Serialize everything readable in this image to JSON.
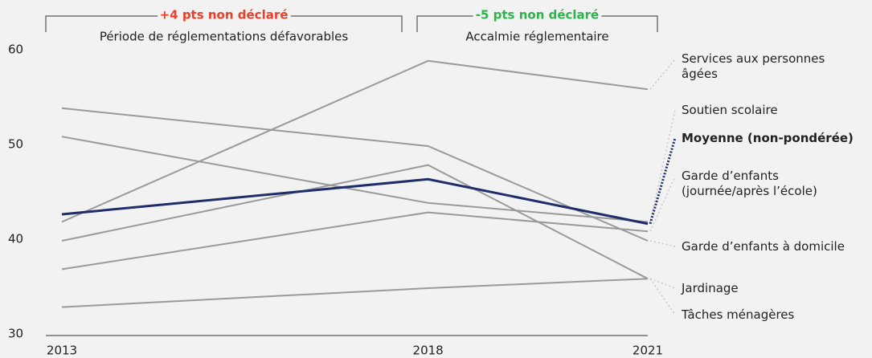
{
  "chart_data": {
    "type": "line",
    "x": [
      2013,
      2018,
      2021
    ],
    "xlim": [
      2013,
      2021
    ],
    "xticks": [
      2013,
      2018,
      2021
    ],
    "ylim": [
      30,
      60
    ],
    "yticks": [
      30,
      40,
      50,
      60
    ],
    "annotations": [
      {
        "highlight": "+4 pts non déclaré",
        "color": "#e8402a",
        "text": "Période de réglementations défavorables"
      },
      {
        "highlight": "-5 pts non déclaré",
        "color": "#2db34a",
        "text": "Accalmie réglementaire"
      }
    ],
    "series": [
      {
        "name": "Services aux personnes âgées",
        "color": "#9a9a9a",
        "values": [
          42,
          59,
          56
        ]
      },
      {
        "name": "Soutien scolaire",
        "color": "#9a9a9a",
        "values": [
          51,
          44,
          42
        ]
      },
      {
        "name": "Moyenne (non-pondérée)",
        "color": "#1f2d6b",
        "values": [
          42.8,
          46.5,
          41.8
        ]
      },
      {
        "name": "Garde d’enfants (journée/après l’école)",
        "color": "#9a9a9a",
        "values": [
          37,
          43,
          41
        ]
      },
      {
        "name": "Garde d’enfants à domicile",
        "color": "#9a9a9a",
        "values": [
          54,
          50,
          40
        ]
      },
      {
        "name": "Jardinage",
        "color": "#9a9a9a",
        "values": [
          40,
          48,
          36
        ]
      },
      {
        "name": "Tâches ménagères",
        "color": "#9a9a9a",
        "values": [
          33,
          35,
          36
        ]
      }
    ]
  }
}
